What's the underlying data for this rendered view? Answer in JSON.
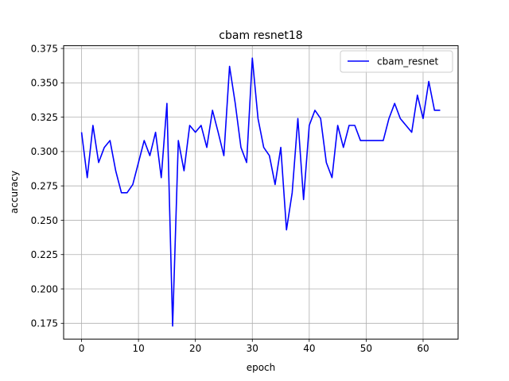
{
  "chart_data": {
    "type": "line",
    "title": "cbam resnet18",
    "xlabel": "epoch",
    "ylabel": "accuracy",
    "xlim": [
      -3.15,
      66.15
    ],
    "ylim": [
      0.1635,
      0.377
    ],
    "xticks": [
      0,
      10,
      20,
      30,
      40,
      50,
      60
    ],
    "yticks": [
      0.175,
      0.2,
      0.225,
      0.25,
      0.275,
      0.3,
      0.325,
      0.35,
      0.375
    ],
    "grid": true,
    "legend_position": "top-right",
    "series": [
      {
        "name": "cbam_resnet",
        "color": "#0000ff",
        "x": [
          0,
          1,
          2,
          3,
          4,
          5,
          6,
          7,
          8,
          9,
          10,
          11,
          12,
          13,
          14,
          15,
          16,
          17,
          18,
          19,
          20,
          21,
          22,
          23,
          24,
          25,
          26,
          27,
          28,
          29,
          30,
          31,
          32,
          33,
          34,
          35,
          36,
          37,
          38,
          39,
          40,
          41,
          42,
          43,
          44,
          45,
          46,
          47,
          48,
          49,
          50,
          51,
          52,
          53,
          54,
          55,
          56,
          57,
          58,
          59,
          60,
          61,
          62,
          63
        ],
        "values": [
          0.314,
          0.281,
          0.319,
          0.292,
          0.303,
          0.308,
          0.286,
          0.27,
          0.27,
          0.276,
          0.292,
          0.308,
          0.297,
          0.314,
          0.281,
          0.335,
          0.173,
          0.308,
          0.286,
          0.319,
          0.314,
          0.319,
          0.303,
          0.33,
          0.314,
          0.297,
          0.362,
          0.335,
          0.303,
          0.292,
          0.368,
          0.324,
          0.303,
          0.297,
          0.276,
          0.303,
          0.243,
          0.27,
          0.324,
          0.265,
          0.319,
          0.33,
          0.324,
          0.292,
          0.281,
          0.319,
          0.303,
          0.319,
          0.319,
          0.308,
          0.308,
          0.308,
          0.308,
          0.308,
          0.324,
          0.335,
          0.324,
          0.319,
          0.314,
          0.341,
          0.324,
          0.351,
          0.33,
          0.33
        ]
      }
    ]
  }
}
